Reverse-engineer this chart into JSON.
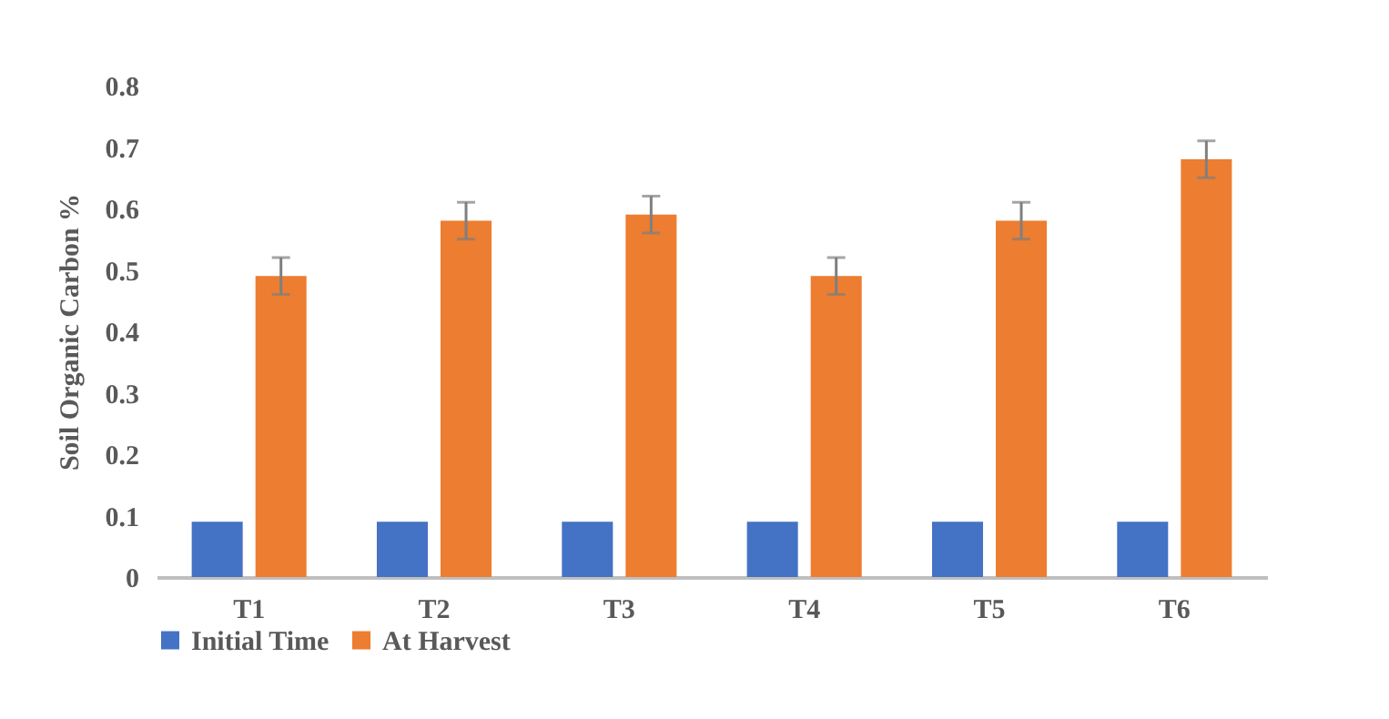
{
  "chart_data": {
    "type": "bar",
    "ylabel": "Soil Organic Carbon %",
    "categories": [
      "T1",
      "T2",
      "T3",
      "T4",
      "T5",
      "T6"
    ],
    "series": [
      {
        "name": "Initial Time",
        "color": "#4472c4",
        "values": [
          0.09,
          0.09,
          0.09,
          0.09,
          0.09,
          0.09
        ]
      },
      {
        "name": "At Harvest",
        "color": "#ed7d31",
        "values": [
          0.49,
          0.58,
          0.59,
          0.49,
          0.58,
          0.68
        ],
        "errors": [
          0.03,
          0.03,
          0.03,
          0.03,
          0.03,
          0.03
        ]
      }
    ],
    "ylim": [
      0,
      0.8
    ],
    "yticks": [
      0,
      0.1,
      0.2,
      0.3,
      0.4,
      0.5,
      0.6,
      0.7,
      0.8
    ],
    "grid": false,
    "legend": "bottom"
  }
}
